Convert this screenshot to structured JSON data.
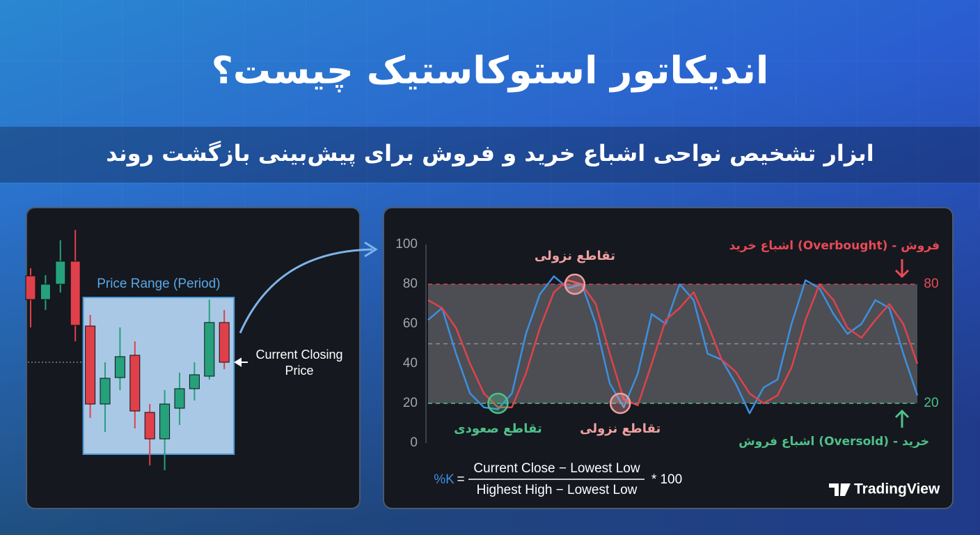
{
  "title": "اندیکاتور استوکاستیک چیست؟",
  "subtitle": "ابزار تشخیص نواحی اشباع خرید و فروش برای پیش‌بینی بازگشت روند",
  "chart_data": [
    {
      "type": "candlestick",
      "up_color": "#26a17b",
      "down_color": "#e0404a",
      "open": [
        304,
        270,
        292,
        325,
        232,
        120,
        158,
        190,
        108,
        70,
        114,
        142,
        160,
        237
      ],
      "close": [
        270,
        292,
        325,
        233,
        120,
        157,
        188,
        110,
        70,
        120,
        142,
        162,
        237,
        180
      ],
      "high": [
        315,
        305,
        355,
        370,
        248,
        180,
        230,
        210,
        120,
        140,
        165,
        180,
        270,
        255
      ],
      "low": [
        230,
        255,
        280,
        210,
        100,
        80,
        140,
        85,
        32,
        25,
        90,
        125,
        155,
        170
      ],
      "ylim": [
        0,
        380
      ],
      "range_label": "Price Range (Period)",
      "close_label": "Current Closing Price"
    },
    {
      "type": "line",
      "ylim": [
        0,
        100
      ],
      "yticks": [
        0,
        20,
        40,
        60,
        80,
        100
      ],
      "overbought": 80,
      "oversold": 20,
      "midline": 50,
      "overbought_label": "اشباع خرید (Overbought) - فروش",
      "oversold_label": "اشباع فروش (Oversold) - خرید",
      "series": [
        {
          "color": "#3d8fe0",
          "values": [
            62,
            68,
            45,
            25,
            18,
            17,
            25,
            55,
            75,
            84,
            78,
            80,
            60,
            30,
            18,
            35,
            65,
            60,
            80,
            72,
            45,
            42,
            30,
            15,
            28,
            32,
            60,
            82,
            78,
            65,
            55,
            60,
            72,
            68,
            45,
            24
          ]
        },
        {
          "color": "#e0424a",
          "values": [
            72,
            68,
            58,
            40,
            25,
            18,
            18,
            35,
            58,
            76,
            82,
            80,
            70,
            45,
            22,
            19,
            40,
            62,
            68,
            76,
            60,
            42,
            36,
            25,
            20,
            24,
            38,
            62,
            80,
            72,
            58,
            53,
            62,
            70,
            60,
            40
          ]
        }
      ],
      "annotations": [
        {
          "text": "تقاطع نزولی",
          "x": 10.5,
          "y": 80,
          "color": "#f0a0a0"
        },
        {
          "text": "تقاطع صعودی",
          "x": 5,
          "y": 20,
          "color": "#4fc08a"
        },
        {
          "text": "تقاطع نزولی",
          "x": 13.75,
          "y": 20,
          "color": "#f0a0a0"
        }
      ],
      "formula": {
        "lhs": "%K",
        "eq": "=",
        "numerator": "Current Close − Lowest Low",
        "denominator": "Highest High − Lowest Low",
        "factor": "* 100"
      },
      "brand": "TradingView"
    }
  ]
}
